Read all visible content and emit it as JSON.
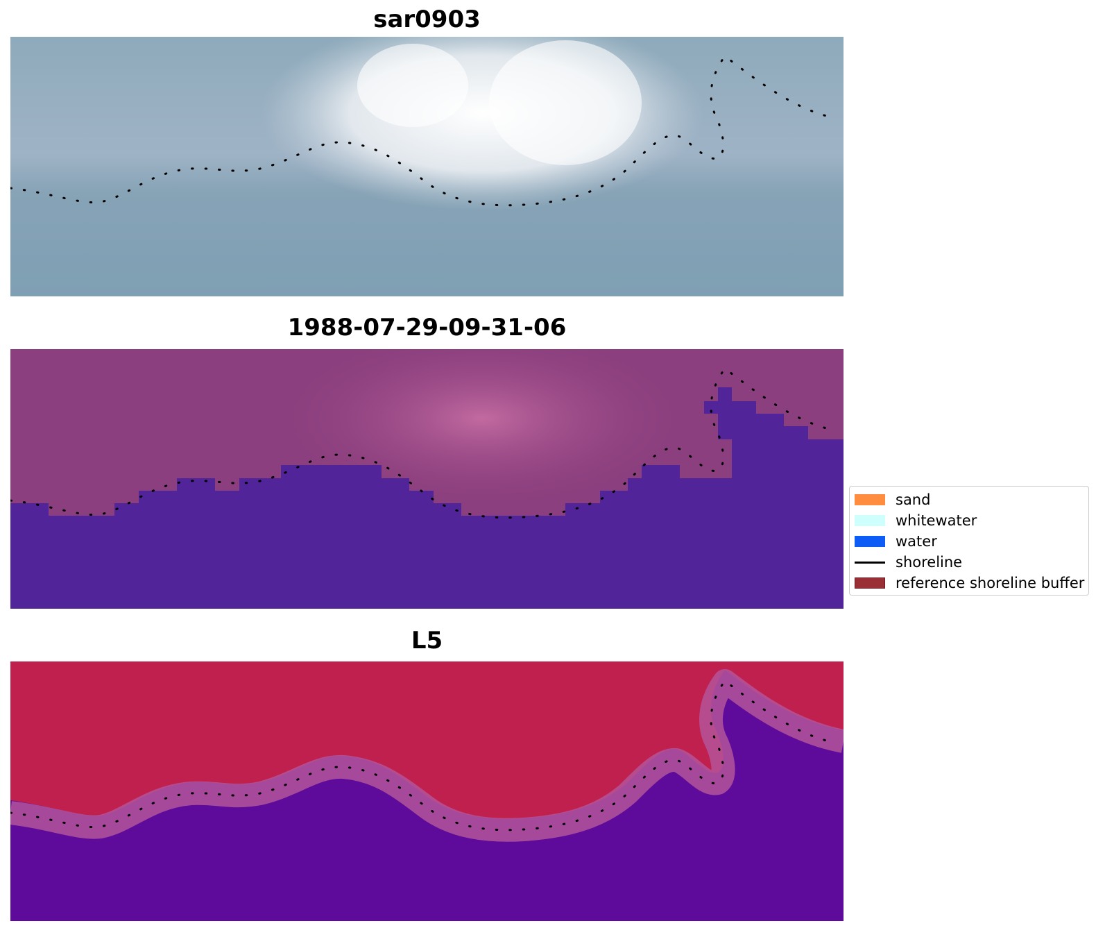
{
  "panels": [
    {
      "title": "sar0903"
    },
    {
      "title": "1988-07-29-09-31-06"
    },
    {
      "title": "L5"
    }
  ],
  "legend": {
    "items": [
      {
        "label": "sand",
        "color": "#ff8c3f",
        "kind": "patch"
      },
      {
        "label": "whitewater",
        "color": "#cffffc",
        "kind": "patch"
      },
      {
        "label": "water",
        "color": "#0d5cf6",
        "kind": "patch"
      },
      {
        "label": "shoreline",
        "color": "#000000",
        "kind": "line"
      },
      {
        "label": "reference shoreline buffer",
        "color": "#9b2f36",
        "kind": "patch"
      }
    ]
  },
  "colors": {
    "sar_water": "#82a2b6",
    "sar_bright": "#ffffff",
    "classified_land": "#8c3f7e",
    "classified_water": "#52249a",
    "l5_land": "#c0204e",
    "l5_water": "#5e0a9a",
    "shoreline_points": "#000000"
  }
}
